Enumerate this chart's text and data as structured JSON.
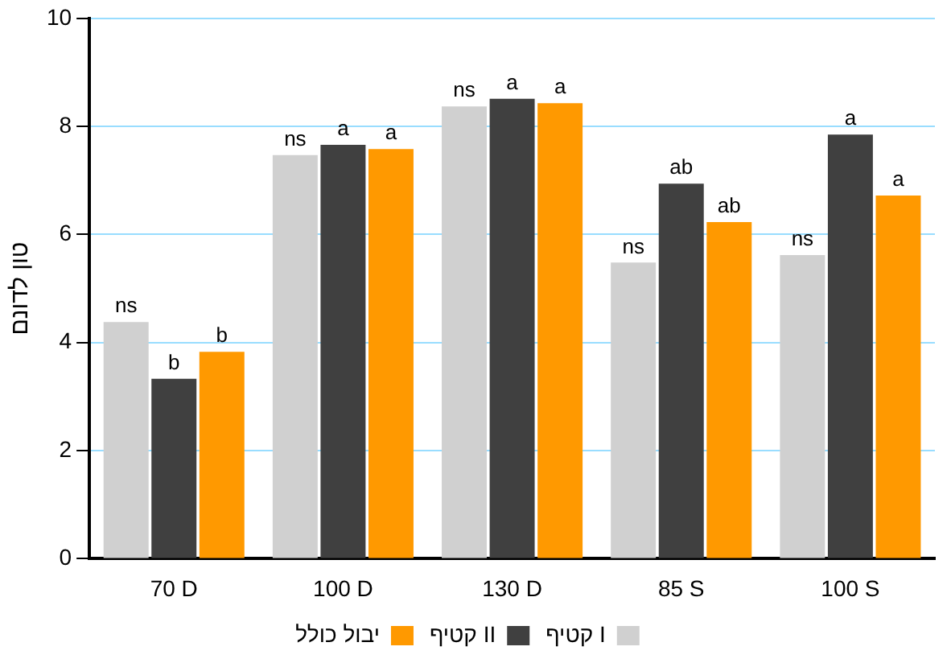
{
  "chart_data": {
    "type": "bar",
    "ylabel": "טון לדונם",
    "categories": [
      "70 D",
      "100 D",
      "130 D",
      "85 S",
      "100 S"
    ],
    "series": [
      {
        "name": "קטיף I",
        "color": "#d0d0d0",
        "values": [
          4.38,
          7.47,
          8.37,
          5.48,
          5.62
        ],
        "value_labels": [
          "ns",
          "ns",
          "ns",
          "ns",
          "ns"
        ]
      },
      {
        "name": "קטיף II",
        "color": "#404040",
        "values": [
          3.33,
          7.66,
          8.51,
          6.94,
          7.85
        ],
        "value_labels": [
          "b",
          "a",
          "a",
          "ab",
          "a"
        ]
      },
      {
        "name": "יבול כולל",
        "color": "#ff9900",
        "values": [
          3.83,
          7.58,
          8.43,
          6.23,
          6.72
        ],
        "value_labels": [
          "b",
          "a",
          "a",
          "ab",
          "a"
        ]
      }
    ],
    "ylim": [
      0,
      10
    ],
    "yticks": [
      0,
      2,
      4,
      6,
      8,
      10
    ],
    "grid": "y",
    "legend": "bottom"
  }
}
